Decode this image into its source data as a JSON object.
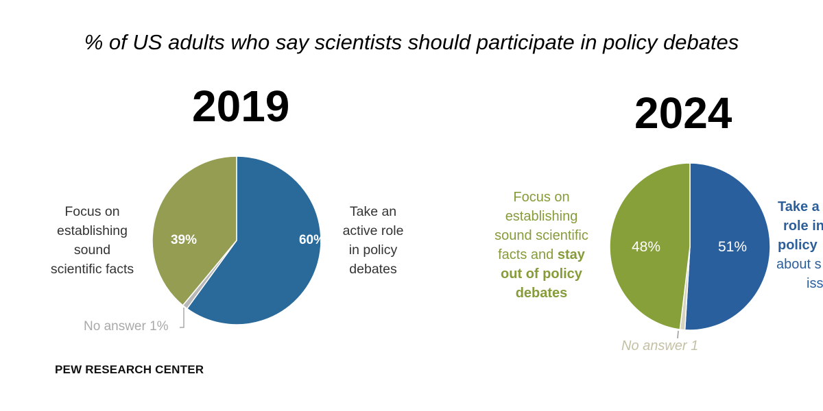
{
  "title": "% of US adults who say scientists should participate in policy debates",
  "source": "PEW RESEARCH CENTER",
  "chart_data": [
    {
      "type": "pie",
      "title": "2019",
      "slices": [
        {
          "label": "Take an active role in policy debates",
          "value": 60,
          "display": "60%",
          "color": "#2a6a9a"
        },
        {
          "label": "No answer",
          "value": 1,
          "display": "No answer  1%",
          "color": "#b8b8b8"
        },
        {
          "label": "Focus on establishing sound scientific facts",
          "value": 39,
          "display": "39%",
          "color": "#949d52"
        }
      ],
      "labels": {
        "left": [
          "Focus on",
          "establishing",
          "sound",
          "scientific facts"
        ],
        "right": [
          "Take an",
          "active role",
          "in policy",
          "debates"
        ]
      }
    },
    {
      "type": "pie",
      "title": "2024",
      "slices": [
        {
          "label": "Take an active role in policy debates about scientific issues",
          "value": 51,
          "display": "51%",
          "color": "#2a5f9e"
        },
        {
          "label": "No answer",
          "value": 1,
          "display": "No answer 1",
          "color": "#d6d3bf"
        },
        {
          "label": "Focus on establishing sound scientific facts and stay out of policy debates",
          "value": 48,
          "display": "48%",
          "color": "#87a03a"
        }
      ],
      "labels": {
        "left": [
          "Focus on",
          "establishing",
          "sound scientific",
          "facts and ",
          "stay",
          "out of policy",
          "debates"
        ],
        "right": [
          "Take a",
          "role in",
          "policy",
          "about s",
          "iss"
        ]
      }
    }
  ]
}
